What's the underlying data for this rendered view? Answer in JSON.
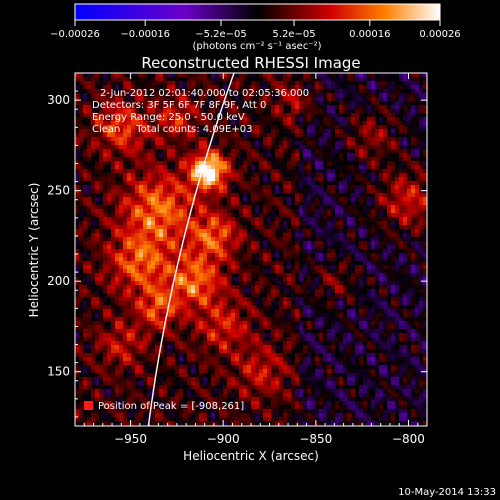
{
  "chart_data": {
    "type": "heatmap",
    "title": "Reconstructed RHESSI Image",
    "xlabel": "Heliocentric X (arcsec)",
    "ylabel": "Heliocentric Y (arcsec)",
    "xlim": [
      -980,
      -790
    ],
    "ylim": [
      120,
      315
    ],
    "x_ticks": [
      -950,
      -900,
      -850,
      -800
    ],
    "x_tick_labels": [
      "−950",
      "−900",
      "−850",
      "−800"
    ],
    "y_ticks": [
      150,
      200,
      250,
      300
    ],
    "y_tick_labels": [
      "150",
      "200",
      "250",
      "300"
    ],
    "colorbar": {
      "min": -0.00026,
      "max": 0.00026,
      "tick_values": [
        -0.00026,
        -0.00016,
        -5.2e-05,
        5.2e-05,
        0.00016,
        0.00026
      ],
      "tick_labels": [
        "−0.00026",
        "−0.00016",
        "−5.2e−05",
        "5.2e−05",
        "0.00016",
        "0.00026"
      ],
      "units_label": "(photons cm⁻² s⁻¹ asec⁻²)",
      "colors": [
        "#0000ff",
        "#7a00d0",
        "#000000",
        "#d00000",
        "#ff7a00",
        "#ffffff"
      ]
    },
    "annotations": [
      "2-Jun-2012 02:01:40.000 to 02:05:36.000",
      "Detectors: 3F 5F 6F 7F 8F 9F, Att 0",
      "Energy Range: 25.0 - 50.0 keV",
      "Clean     Total counts: 4.09E+03"
    ],
    "peak": {
      "x": -908,
      "y": 261,
      "label": "Position of Peak = [-908,261]"
    },
    "limb_color": "#ffffff",
    "grid": false
  },
  "footer_timestamp": "10-May-2014 13:33"
}
